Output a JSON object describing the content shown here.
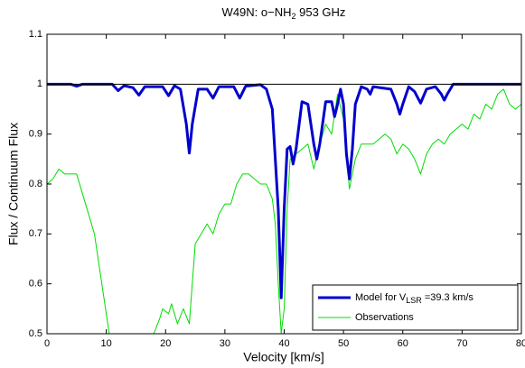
{
  "chart_data": {
    "type": "line",
    "title": [
      "W49N: o−NH",
      "2",
      " 953 GHz"
    ],
    "x_label": "Velocity [km/s]",
    "y_label": "Flux / Continuum Flux",
    "xlim": [
      0,
      80
    ],
    "ylim": [
      0.5,
      1.1
    ],
    "xticks": [
      0,
      10,
      20,
      30,
      40,
      50,
      60,
      70,
      80
    ],
    "yticks": [
      0.5,
      0.6,
      0.7,
      0.8,
      0.9,
      1,
      1.1
    ],
    "hline": 1,
    "legend": "lower right",
    "grid": false,
    "series": [
      {
        "name": [
          "Model for V",
          "LSR",
          " =39.3 km/s"
        ],
        "color": "#0000cc",
        "width": 3,
        "x": [
          0,
          4,
          5,
          6,
          11,
          12,
          13,
          14.5,
          15.5,
          16.5,
          19.5,
          20.5,
          21.5,
          22.5,
          23.5,
          24,
          24.5,
          25.5,
          27,
          28,
          29,
          31.5,
          32.5,
          33.5,
          36,
          37,
          38,
          39,
          39.5,
          40,
          40.5,
          41,
          41.5,
          42,
          43,
          44,
          45,
          45.5,
          46,
          47,
          48,
          48.5,
          49,
          49.5,
          50,
          50.5,
          51,
          51.5,
          52,
          53,
          54,
          54.5,
          55,
          58,
          59,
          59.5,
          60,
          61,
          62,
          63,
          64,
          65.5,
          66.5,
          67,
          67.5,
          68.5,
          80
        ],
        "values": [
          1,
          1,
          0.996,
          1,
          1,
          0.987,
          0.997,
          0.993,
          0.978,
          0.995,
          0.995,
          0.977,
          0.997,
          0.99,
          0.92,
          0.862,
          0.92,
          0.99,
          0.99,
          0.972,
          0.995,
          0.995,
          0.972,
          0.996,
          0.999,
          0.99,
          0.95,
          0.75,
          0.572,
          0.75,
          0.87,
          0.875,
          0.84,
          0.87,
          0.965,
          0.96,
          0.88,
          0.85,
          0.88,
          0.965,
          0.965,
          0.935,
          0.96,
          0.99,
          0.96,
          0.86,
          0.81,
          0.87,
          0.96,
          0.995,
          0.99,
          0.98,
          0.995,
          0.99,
          0.96,
          0.94,
          0.96,
          0.995,
          0.985,
          0.962,
          0.99,
          0.995,
          0.98,
          0.968,
          0.98,
          1,
          1
        ]
      },
      {
        "name": "Observations",
        "color": "#00dd00",
        "width": 1,
        "x": [
          0,
          1,
          2,
          3,
          4,
          5,
          6,
          7,
          8,
          9,
          10,
          10.5,
          11,
          17.5,
          18,
          19,
          19.5,
          20.5,
          21,
          22,
          23,
          24,
          24.5,
          25,
          26,
          27,
          28,
          29,
          30,
          31,
          32,
          33,
          34,
          35,
          36,
          37,
          38,
          38.5,
          39,
          39.5,
          40,
          40.5,
          41,
          42,
          43,
          44,
          45,
          46,
          47,
          48,
          49,
          50,
          51,
          52,
          53,
          54,
          55,
          56,
          57,
          58,
          59,
          60,
          61,
          62,
          63,
          64,
          65,
          66,
          67,
          68,
          69,
          70,
          71,
          72,
          73,
          74,
          75,
          76,
          77,
          78,
          79,
          80
        ],
        "values": [
          0.8,
          0.81,
          0.83,
          0.82,
          0.82,
          0.82,
          0.78,
          0.74,
          0.7,
          0.62,
          0.54,
          0.5,
          null,
          null,
          0.5,
          0.53,
          0.55,
          0.54,
          0.56,
          0.52,
          0.55,
          0.52,
          0.6,
          0.68,
          0.7,
          0.72,
          0.7,
          0.74,
          0.76,
          0.76,
          0.8,
          0.82,
          0.82,
          0.81,
          0.8,
          0.8,
          0.77,
          0.72,
          0.6,
          0.5,
          0.55,
          0.75,
          0.85,
          0.86,
          0.87,
          0.88,
          0.83,
          0.88,
          0.92,
          0.9,
          0.98,
          0.93,
          0.79,
          0.85,
          0.88,
          0.88,
          0.88,
          0.89,
          0.9,
          0.89,
          0.86,
          0.88,
          0.87,
          0.85,
          0.82,
          0.86,
          0.88,
          0.89,
          0.88,
          0.9,
          0.91,
          0.92,
          0.91,
          0.94,
          0.93,
          0.96,
          0.95,
          0.98,
          0.99,
          0.96,
          0.95,
          0.96
        ]
      }
    ]
  }
}
